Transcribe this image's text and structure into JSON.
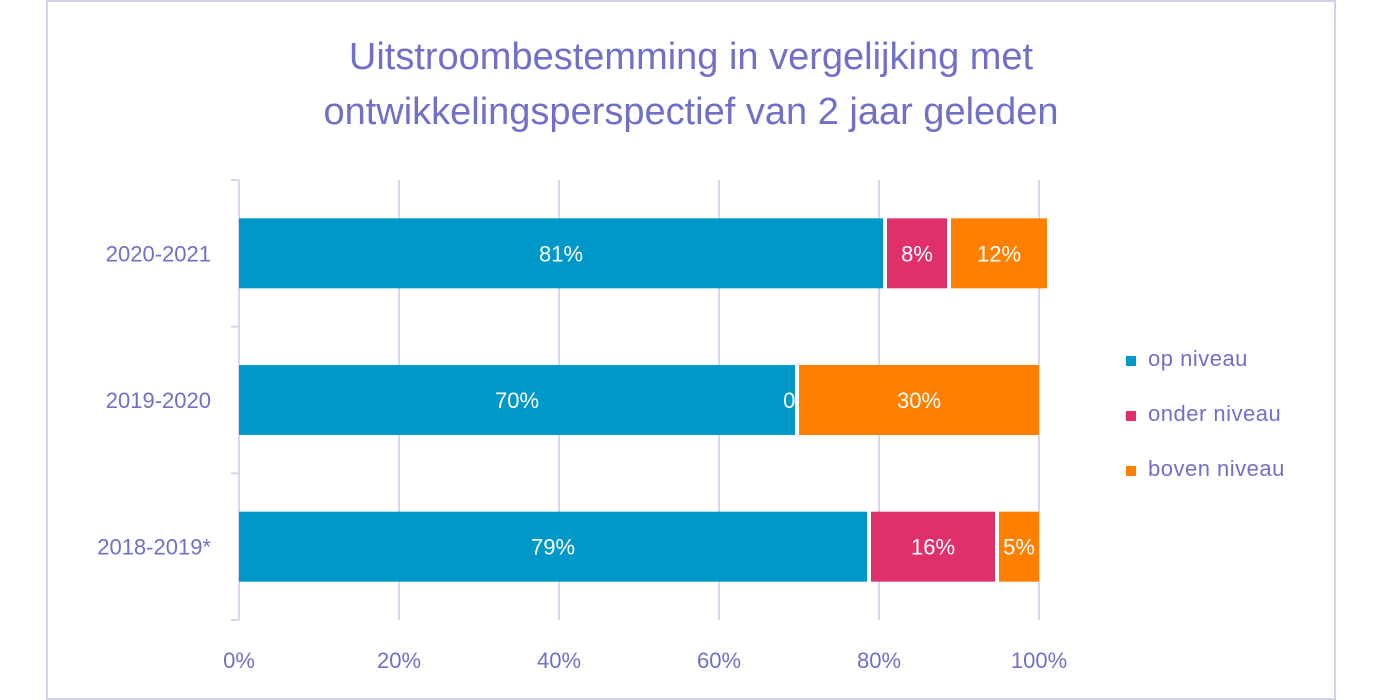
{
  "chart_data": {
    "type": "bar",
    "orientation": "horizontal",
    "stacked": true,
    "title_lines": [
      "Uitstroombestemming in vergelijking met",
      "ontwikkelingsperspectief van 2 jaar geleden"
    ],
    "categories": [
      "2020-2021",
      "2019-2020",
      "2018-2019*"
    ],
    "series": [
      {
        "name": "op niveau",
        "color": "#0098c8",
        "values": [
          81,
          70,
          79
        ],
        "labels": [
          "81%",
          "70%",
          "79%"
        ]
      },
      {
        "name": "onder niveau",
        "color": "#e0306a",
        "values": [
          8,
          0,
          16
        ],
        "labels": [
          "8%",
          "0%",
          "16%"
        ]
      },
      {
        "name": "boven niveau",
        "color": "#ff8000",
        "values": [
          12,
          30,
          5
        ],
        "labels": [
          "12%",
          "30%",
          "5%"
        ]
      }
    ],
    "xlim": [
      0,
      100
    ],
    "xticks": [
      "0%",
      "20%",
      "40%",
      "60%",
      "80%",
      "100%"
    ],
    "grid": true,
    "legend_position": "right"
  }
}
